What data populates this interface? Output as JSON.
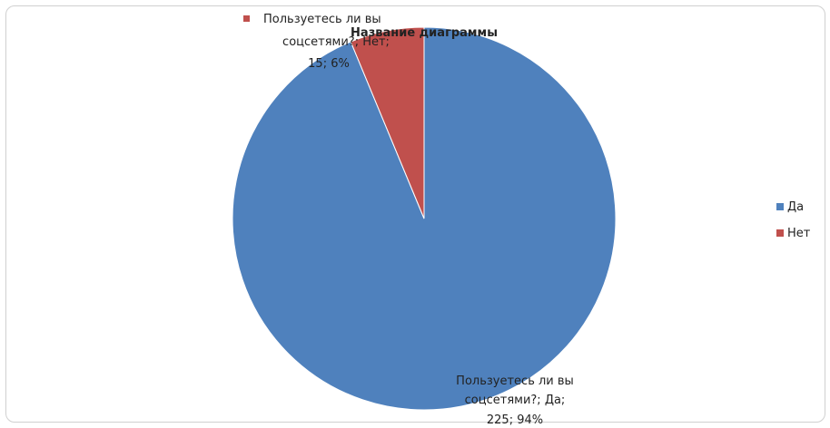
{
  "chart_data": {
    "type": "pie",
    "title": "Название диаграммы",
    "series_label": "Пользуетесь ли вы соцсетями?",
    "categories": [
      "Да",
      "Нет"
    ],
    "values": [
      225,
      15
    ],
    "percentages": [
      "94%",
      "6%"
    ],
    "colors": [
      "#4F81BD",
      "#C0504D"
    ],
    "legend_position": "right",
    "data_labels": [
      {
        "category": "Да",
        "lines": [
          "Пользуетесь ли вы",
          "соцсетями?; Да;",
          "225; 94%"
        ]
      },
      {
        "category": "Нет",
        "lines": [
          "Пользуетесь ли вы",
          "соцсетями?; Нет;",
          "15; 6%"
        ]
      }
    ],
    "legend": [
      {
        "label": "Да",
        "color": "#4F81BD"
      },
      {
        "label": "Нет",
        "color": "#C0504D"
      }
    ]
  }
}
